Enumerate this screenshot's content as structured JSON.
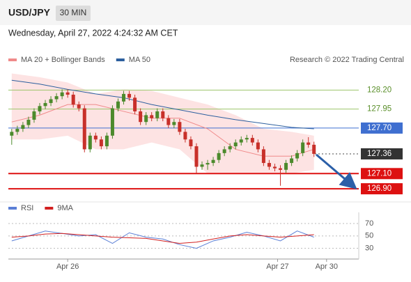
{
  "header": {
    "symbol": "USD/JPY",
    "interval": "30 MIN",
    "timestamp": "Wednesday, April 27, 2022 4:24:32 AM CET"
  },
  "chart_data": [
    {
      "type": "candlestick",
      "credit": "Research © 2022 Trading Central",
      "xlim": [
        -0.6,
        62
      ],
      "ylim": [
        126.8,
        128.47
      ],
      "up_color": "#4c8a2c",
      "down_color": "#c8302a",
      "open": [
        127.6,
        127.65,
        127.69,
        127.74,
        127.81,
        127.92,
        127.99,
        128.03,
        128.08,
        128.12,
        128.17,
        128.14,
        128.01,
        127.96,
        127.42,
        127.6,
        127.55,
        127.46,
        127.6,
        127.96,
        128.05,
        128.15,
        128.1,
        127.92,
        127.78,
        127.87,
        127.83,
        127.92,
        127.83,
        127.74,
        127.78,
        127.65,
        127.55,
        127.46,
        127.19,
        127.22,
        127.24,
        127.28,
        127.37,
        127.42,
        127.46,
        127.51,
        127.55,
        127.57,
        127.51,
        127.42,
        127.24,
        127.19,
        127.17,
        127.15,
        127.24,
        127.3,
        127.37,
        127.51,
        127.48
      ],
      "high": [
        127.69,
        127.73,
        127.78,
        127.85,
        127.96,
        128.03,
        128.07,
        128.12,
        128.16,
        128.21,
        128.21,
        128.18,
        128.05,
        128.0,
        127.64,
        127.64,
        127.59,
        127.64,
        128.0,
        128.09,
        128.19,
        128.19,
        128.14,
        127.96,
        127.91,
        127.91,
        127.96,
        127.96,
        127.87,
        127.82,
        127.82,
        127.69,
        127.59,
        127.5,
        127.26,
        127.28,
        127.32,
        127.41,
        127.46,
        127.5,
        127.55,
        127.59,
        127.61,
        127.61,
        127.55,
        127.46,
        127.28,
        127.23,
        127.21,
        127.28,
        127.34,
        127.41,
        127.55,
        127.58,
        127.52
      ],
      "low": [
        127.48,
        127.61,
        127.65,
        127.7,
        127.77,
        127.88,
        127.95,
        127.99,
        128.04,
        128.08,
        128.1,
        127.97,
        127.92,
        127.38,
        127.38,
        127.51,
        127.42,
        127.42,
        127.56,
        127.92,
        128.01,
        128.06,
        127.88,
        127.74,
        127.74,
        127.79,
        127.79,
        127.79,
        127.7,
        127.7,
        127.61,
        127.51,
        127.42,
        127.1,
        127.15,
        127.15,
        127.2,
        127.24,
        127.33,
        127.38,
        127.42,
        127.47,
        127.51,
        127.47,
        127.38,
        127.2,
        127.15,
        127.13,
        126.94,
        127.11,
        127.2,
        127.26,
        127.33,
        127.44,
        127.32
      ],
      "close": [
        127.65,
        127.69,
        127.74,
        127.81,
        127.92,
        127.99,
        128.03,
        128.08,
        128.12,
        128.17,
        128.14,
        128.01,
        127.96,
        127.42,
        127.6,
        127.55,
        127.46,
        127.6,
        127.96,
        128.05,
        128.15,
        128.1,
        127.92,
        127.78,
        127.87,
        127.83,
        127.92,
        127.83,
        127.74,
        127.78,
        127.65,
        127.55,
        127.46,
        127.19,
        127.22,
        127.24,
        127.28,
        127.37,
        127.42,
        127.46,
        127.51,
        127.55,
        127.57,
        127.51,
        127.42,
        127.24,
        127.19,
        127.17,
        127.15,
        127.24,
        127.3,
        127.37,
        127.51,
        127.48,
        127.36
      ],
      "series": [
        {
          "name": "MA 20 + Bollinger Bands",
          "color": "#f08a8a",
          "band_color": "#fde3e3",
          "x": [
            0,
            5,
            10,
            15,
            20,
            25,
            30,
            35,
            40,
            45,
            50,
            54
          ],
          "values": [
            127.78,
            127.87,
            128.01,
            128.01,
            127.92,
            127.83,
            127.83,
            127.69,
            127.42,
            127.33,
            127.33,
            127.42
          ],
          "upper": [
            128.42,
            128.37,
            128.3,
            128.15,
            128.21,
            128.19,
            128.1,
            128.01,
            127.87,
            127.69,
            127.65,
            127.6
          ],
          "lower": [
            127.55,
            127.55,
            127.6,
            127.42,
            127.42,
            127.51,
            127.42,
            127.1,
            127.1,
            127.1,
            127.1,
            127.15
          ]
        },
        {
          "name": "MA 50",
          "color": "#2c5f9e",
          "x": [
            0,
            5,
            10,
            15,
            20,
            25,
            30,
            35,
            40,
            45,
            50,
            54
          ],
          "values": [
            128.33,
            128.28,
            128.21,
            128.15,
            128.1,
            128.01,
            127.94,
            127.87,
            127.81,
            127.76,
            127.71,
            127.69
          ]
        }
      ],
      "levels": [
        {
          "value": 128.2,
          "label": "128.20",
          "color": "#9cc46a",
          "box": false,
          "dash": false,
          "width": 1
        },
        {
          "value": 127.95,
          "label": "127.95",
          "color": "#9cc46a",
          "box": false,
          "dash": false,
          "width": 1
        },
        {
          "value": 127.7,
          "label": "127.70",
          "color": "#3f6fd0",
          "box": true,
          "dash": false,
          "width": 1
        },
        {
          "value": 127.36,
          "label": "127.36",
          "color": "#333333",
          "box": true,
          "dash": true,
          "width": 1
        },
        {
          "value": 127.1,
          "label": "127.10",
          "color": "#dd1111",
          "box": true,
          "dash": false,
          "width": 2
        },
        {
          "value": 126.9,
          "label": "126.90",
          "color": "#dd1111",
          "box": true,
          "dash": false,
          "width": 2
        }
      ]
    },
    {
      "type": "line",
      "xlim": [
        -0.6,
        62
      ],
      "ylim": [
        15,
        88
      ],
      "yticks": [
        70,
        50,
        30
      ],
      "xticks": [
        {
          "value": 10,
          "label": "Apr 26"
        },
        {
          "value": 47.5,
          "label": "Apr 27"
        },
        {
          "value": 56.25,
          "label": "Apr 30"
        }
      ],
      "series": [
        {
          "name": "RSI",
          "color": "#5b7fd6",
          "x": [
            0,
            3,
            6,
            9,
            12,
            15,
            18,
            21,
            24,
            27,
            30,
            33,
            36,
            39,
            42,
            45,
            48,
            51,
            54
          ],
          "values": [
            42,
            50,
            58,
            54,
            50,
            52,
            38,
            55,
            48,
            45,
            36,
            30,
            42,
            48,
            56,
            50,
            42,
            58,
            48
          ]
        },
        {
          "name": "9MA",
          "color": "#d22020",
          "x": [
            0,
            3,
            6,
            9,
            12,
            15,
            18,
            21,
            24,
            27,
            30,
            33,
            36,
            39,
            42,
            45,
            48,
            51,
            54
          ],
          "values": [
            48,
            50,
            53,
            54,
            52,
            50,
            48,
            47,
            46,
            42,
            38,
            40,
            45,
            50,
            52,
            50,
            48,
            50,
            52
          ]
        }
      ]
    }
  ]
}
